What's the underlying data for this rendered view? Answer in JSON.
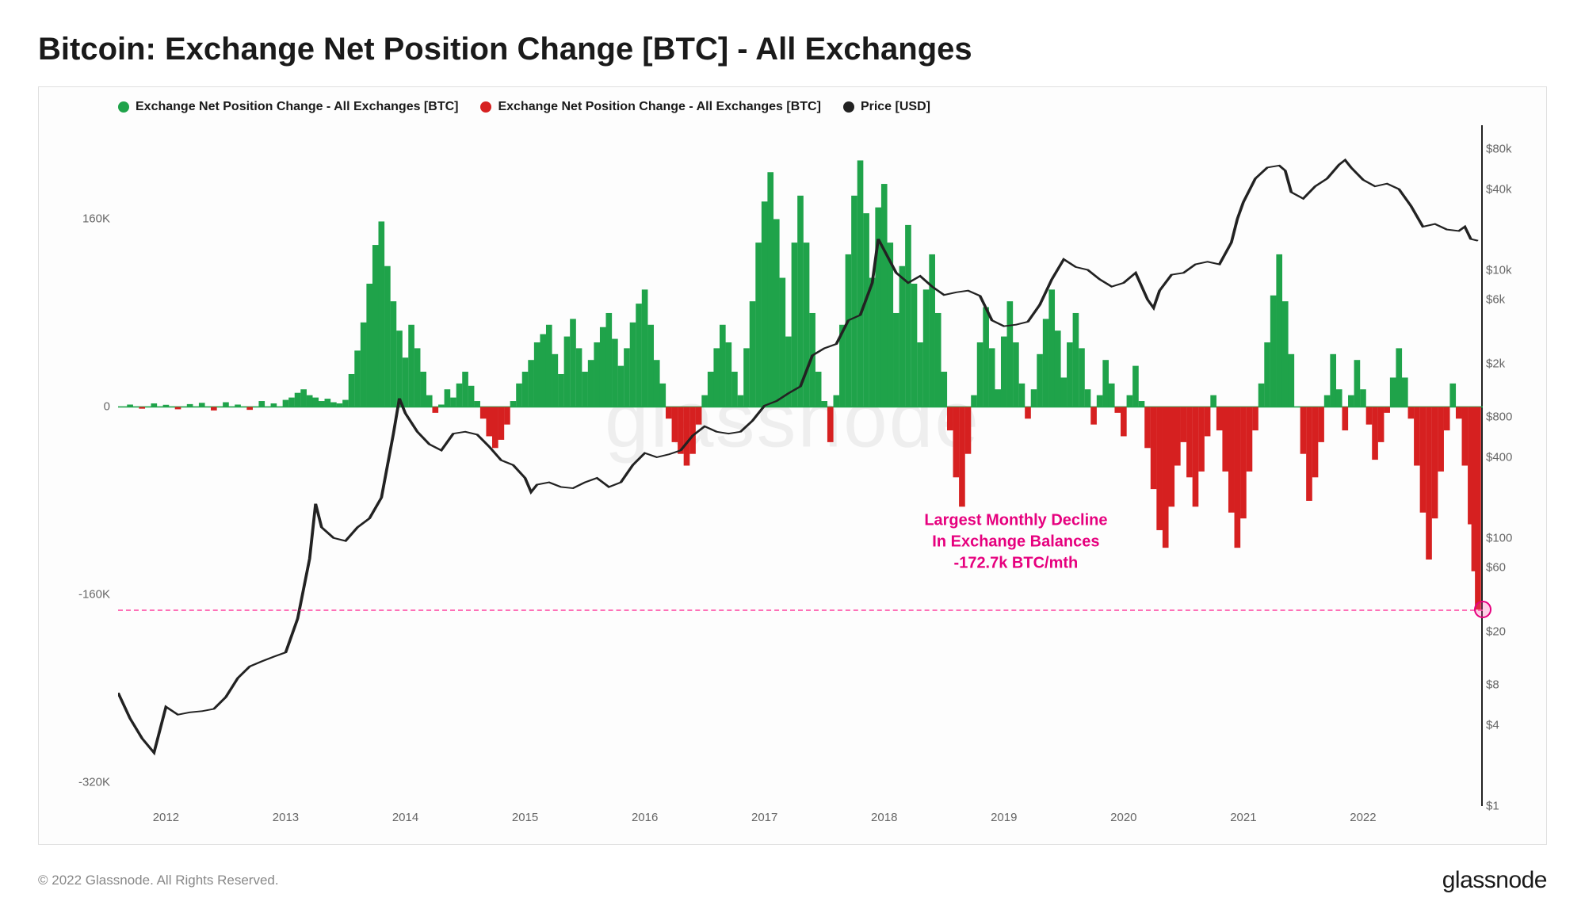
{
  "title": "Bitcoin: Exchange Net Position Change [BTC] - All Exchanges",
  "legend": {
    "pos": {
      "label": "Exchange Net Position Change - All Exchanges [BTC]",
      "color": "#1fa34a"
    },
    "neg": {
      "label": "Exchange Net Position Change - All Exchanges [BTC]",
      "color": "#d62020"
    },
    "price": {
      "label": "Price [USD]",
      "color": "#222222"
    }
  },
  "left_axis": {
    "min": -340000,
    "max": 240000,
    "ticks": [
      {
        "v": 160000,
        "label": "160K"
      },
      {
        "v": 0,
        "label": "0"
      },
      {
        "v": -160000,
        "label": "-160K"
      },
      {
        "v": -320000,
        "label": "-320K"
      }
    ]
  },
  "right_axis": {
    "type": "log",
    "min": 1,
    "max": 120000,
    "ticks": [
      {
        "v": 80000,
        "label": "$80k"
      },
      {
        "v": 40000,
        "label": "$40k"
      },
      {
        "v": 10000,
        "label": "$10k"
      },
      {
        "v": 6000,
        "label": "$6k"
      },
      {
        "v": 2000,
        "label": "$2k"
      },
      {
        "v": 800,
        "label": "$800"
      },
      {
        "v": 400,
        "label": "$400"
      },
      {
        "v": 100,
        "label": "$100"
      },
      {
        "v": 60,
        "label": "$60"
      },
      {
        "v": 20,
        "label": "$20"
      },
      {
        "v": 8,
        "label": "$8"
      },
      {
        "v": 4,
        "label": "$4"
      },
      {
        "v": 1,
        "label": "$1"
      }
    ]
  },
  "x_axis": {
    "min": 2011.6,
    "max": 2023.0,
    "ticks": [
      2012,
      2013,
      2014,
      2015,
      2016,
      2017,
      2018,
      2019,
      2020,
      2021,
      2022
    ]
  },
  "colors": {
    "pos_bar": "#1fa34a",
    "neg_bar": "#d62020",
    "price_line": "#222222",
    "grid": "#e8e8e8",
    "dash": "#ff4da6",
    "annotation": "#e6007e",
    "background": "#fdfdfd"
  },
  "annotation": {
    "line1": "Largest Monthly Decline",
    "line2": "In Exchange Balances",
    "line3": "-172.7k BTC/mth",
    "ref_value": -172700,
    "text_x_year": 2019.1,
    "text_y_value": -115000
  },
  "watermark": "glassnode",
  "footer": {
    "copyright": "© 2022 Glassnode. All Rights Reserved.",
    "brand": "glassnode"
  },
  "bar_series": [
    [
      2011.7,
      2000
    ],
    [
      2011.8,
      -1500
    ],
    [
      2011.9,
      3000
    ],
    [
      2012.0,
      1800
    ],
    [
      2012.1,
      -2000
    ],
    [
      2012.2,
      2400
    ],
    [
      2012.3,
      3500
    ],
    [
      2012.4,
      -3000
    ],
    [
      2012.5,
      4000
    ],
    [
      2012.6,
      2000
    ],
    [
      2012.7,
      -2500
    ],
    [
      2012.8,
      5000
    ],
    [
      2012.9,
      3000
    ],
    [
      2013.0,
      6000
    ],
    [
      2013.05,
      8000
    ],
    [
      2013.1,
      12000
    ],
    [
      2013.15,
      15000
    ],
    [
      2013.2,
      10000
    ],
    [
      2013.25,
      8000
    ],
    [
      2013.3,
      5000
    ],
    [
      2013.35,
      7000
    ],
    [
      2013.4,
      4000
    ],
    [
      2013.45,
      3000
    ],
    [
      2013.5,
      6000
    ],
    [
      2013.55,
      28000
    ],
    [
      2013.6,
      48000
    ],
    [
      2013.65,
      72000
    ],
    [
      2013.7,
      105000
    ],
    [
      2013.75,
      138000
    ],
    [
      2013.8,
      158000
    ],
    [
      2013.85,
      120000
    ],
    [
      2013.9,
      90000
    ],
    [
      2013.95,
      65000
    ],
    [
      2014.0,
      42000
    ],
    [
      2014.05,
      70000
    ],
    [
      2014.1,
      50000
    ],
    [
      2014.15,
      30000
    ],
    [
      2014.2,
      10000
    ],
    [
      2014.25,
      -5000
    ],
    [
      2014.3,
      2000
    ],
    [
      2014.35,
      15000
    ],
    [
      2014.4,
      8000
    ],
    [
      2014.45,
      20000
    ],
    [
      2014.5,
      30000
    ],
    [
      2014.55,
      18000
    ],
    [
      2014.6,
      5000
    ],
    [
      2014.65,
      -10000
    ],
    [
      2014.7,
      -25000
    ],
    [
      2014.75,
      -35000
    ],
    [
      2014.8,
      -28000
    ],
    [
      2014.85,
      -15000
    ],
    [
      2014.9,
      5000
    ],
    [
      2014.95,
      20000
    ],
    [
      2015.0,
      30000
    ],
    [
      2015.05,
      40000
    ],
    [
      2015.1,
      55000
    ],
    [
      2015.15,
      62000
    ],
    [
      2015.2,
      70000
    ],
    [
      2015.25,
      45000
    ],
    [
      2015.3,
      28000
    ],
    [
      2015.35,
      60000
    ],
    [
      2015.4,
      75000
    ],
    [
      2015.45,
      50000
    ],
    [
      2015.5,
      30000
    ],
    [
      2015.55,
      40000
    ],
    [
      2015.6,
      55000
    ],
    [
      2015.65,
      68000
    ],
    [
      2015.7,
      80000
    ],
    [
      2015.75,
      58000
    ],
    [
      2015.8,
      35000
    ],
    [
      2015.85,
      50000
    ],
    [
      2015.9,
      72000
    ],
    [
      2015.95,
      88000
    ],
    [
      2016.0,
      100000
    ],
    [
      2016.05,
      70000
    ],
    [
      2016.1,
      40000
    ],
    [
      2016.15,
      20000
    ],
    [
      2016.2,
      -10000
    ],
    [
      2016.25,
      -30000
    ],
    [
      2016.3,
      -40000
    ],
    [
      2016.35,
      -50000
    ],
    [
      2016.4,
      -40000
    ],
    [
      2016.45,
      -15000
    ],
    [
      2016.5,
      10000
    ],
    [
      2016.55,
      30000
    ],
    [
      2016.6,
      50000
    ],
    [
      2016.65,
      70000
    ],
    [
      2016.7,
      55000
    ],
    [
      2016.75,
      30000
    ],
    [
      2016.8,
      10000
    ],
    [
      2016.85,
      50000
    ],
    [
      2016.9,
      90000
    ],
    [
      2016.95,
      140000
    ],
    [
      2017.0,
      175000
    ],
    [
      2017.05,
      200000
    ],
    [
      2017.1,
      160000
    ],
    [
      2017.15,
      110000
    ],
    [
      2017.2,
      60000
    ],
    [
      2017.25,
      140000
    ],
    [
      2017.3,
      180000
    ],
    [
      2017.35,
      140000
    ],
    [
      2017.4,
      80000
    ],
    [
      2017.45,
      30000
    ],
    [
      2017.5,
      5000
    ],
    [
      2017.55,
      -30000
    ],
    [
      2017.6,
      10000
    ],
    [
      2017.65,
      70000
    ],
    [
      2017.7,
      130000
    ],
    [
      2017.75,
      180000
    ],
    [
      2017.8,
      210000
    ],
    [
      2017.85,
      165000
    ],
    [
      2017.9,
      110000
    ],
    [
      2017.95,
      170000
    ],
    [
      2018.0,
      190000
    ],
    [
      2018.05,
      140000
    ],
    [
      2018.1,
      80000
    ],
    [
      2018.15,
      120000
    ],
    [
      2018.2,
      155000
    ],
    [
      2018.25,
      105000
    ],
    [
      2018.3,
      55000
    ],
    [
      2018.35,
      100000
    ],
    [
      2018.4,
      130000
    ],
    [
      2018.45,
      80000
    ],
    [
      2018.5,
      30000
    ],
    [
      2018.55,
      -20000
    ],
    [
      2018.6,
      -60000
    ],
    [
      2018.65,
      -85000
    ],
    [
      2018.7,
      -40000
    ],
    [
      2018.75,
      10000
    ],
    [
      2018.8,
      55000
    ],
    [
      2018.85,
      85000
    ],
    [
      2018.9,
      50000
    ],
    [
      2018.95,
      15000
    ],
    [
      2019.0,
      60000
    ],
    [
      2019.05,
      90000
    ],
    [
      2019.1,
      55000
    ],
    [
      2019.15,
      20000
    ],
    [
      2019.2,
      -10000
    ],
    [
      2019.25,
      15000
    ],
    [
      2019.3,
      45000
    ],
    [
      2019.35,
      75000
    ],
    [
      2019.4,
      100000
    ],
    [
      2019.45,
      65000
    ],
    [
      2019.5,
      25000
    ],
    [
      2019.55,
      55000
    ],
    [
      2019.6,
      80000
    ],
    [
      2019.65,
      50000
    ],
    [
      2019.7,
      15000
    ],
    [
      2019.75,
      -15000
    ],
    [
      2019.8,
      10000
    ],
    [
      2019.85,
      40000
    ],
    [
      2019.9,
      20000
    ],
    [
      2019.95,
      -5000
    ],
    [
      2020.0,
      -25000
    ],
    [
      2020.05,
      10000
    ],
    [
      2020.1,
      35000
    ],
    [
      2020.15,
      5000
    ],
    [
      2020.2,
      -35000
    ],
    [
      2020.25,
      -70000
    ],
    [
      2020.3,
      -105000
    ],
    [
      2020.35,
      -120000
    ],
    [
      2020.4,
      -85000
    ],
    [
      2020.45,
      -50000
    ],
    [
      2020.5,
      -30000
    ],
    [
      2020.55,
      -60000
    ],
    [
      2020.6,
      -85000
    ],
    [
      2020.65,
      -55000
    ],
    [
      2020.7,
      -25000
    ],
    [
      2020.75,
      10000
    ],
    [
      2020.8,
      -20000
    ],
    [
      2020.85,
      -55000
    ],
    [
      2020.9,
      -90000
    ],
    [
      2020.95,
      -120000
    ],
    [
      2021.0,
      -95000
    ],
    [
      2021.05,
      -55000
    ],
    [
      2021.1,
      -20000
    ],
    [
      2021.15,
      20000
    ],
    [
      2021.2,
      55000
    ],
    [
      2021.25,
      95000
    ],
    [
      2021.3,
      130000
    ],
    [
      2021.35,
      90000
    ],
    [
      2021.4,
      45000
    ],
    [
      2021.45,
      0
    ],
    [
      2021.5,
      -40000
    ],
    [
      2021.55,
      -80000
    ],
    [
      2021.6,
      -60000
    ],
    [
      2021.65,
      -30000
    ],
    [
      2021.7,
      10000
    ],
    [
      2021.75,
      45000
    ],
    [
      2021.8,
      15000
    ],
    [
      2021.85,
      -20000
    ],
    [
      2021.9,
      10000
    ],
    [
      2021.95,
      40000
    ],
    [
      2022.0,
      15000
    ],
    [
      2022.05,
      -15000
    ],
    [
      2022.1,
      -45000
    ],
    [
      2022.15,
      -30000
    ],
    [
      2022.2,
      -5000
    ],
    [
      2022.25,
      25000
    ],
    [
      2022.3,
      50000
    ],
    [
      2022.35,
      25000
    ],
    [
      2022.4,
      -10000
    ],
    [
      2022.45,
      -50000
    ],
    [
      2022.5,
      -90000
    ],
    [
      2022.55,
      -130000
    ],
    [
      2022.6,
      -95000
    ],
    [
      2022.65,
      -55000
    ],
    [
      2022.7,
      -20000
    ],
    [
      2022.75,
      20000
    ],
    [
      2022.8,
      -10000
    ],
    [
      2022.85,
      -50000
    ],
    [
      2022.9,
      -100000
    ],
    [
      2022.93,
      -140000
    ],
    [
      2022.96,
      -172700
    ]
  ],
  "price_series": [
    [
      2011.6,
      7
    ],
    [
      2011.7,
      4.5
    ],
    [
      2011.8,
      3.2
    ],
    [
      2011.9,
      2.5
    ],
    [
      2012.0,
      5.5
    ],
    [
      2012.1,
      4.8
    ],
    [
      2012.2,
      5.0
    ],
    [
      2012.3,
      5.1
    ],
    [
      2012.4,
      5.3
    ],
    [
      2012.5,
      6.5
    ],
    [
      2012.6,
      9
    ],
    [
      2012.7,
      11
    ],
    [
      2012.8,
      12
    ],
    [
      2012.9,
      13
    ],
    [
      2013.0,
      14
    ],
    [
      2013.1,
      25
    ],
    [
      2013.2,
      70
    ],
    [
      2013.25,
      180
    ],
    [
      2013.3,
      120
    ],
    [
      2013.4,
      100
    ],
    [
      2013.5,
      95
    ],
    [
      2013.6,
      120
    ],
    [
      2013.7,
      140
    ],
    [
      2013.8,
      200
    ],
    [
      2013.9,
      600
    ],
    [
      2013.95,
      1100
    ],
    [
      2014.0,
      850
    ],
    [
      2014.1,
      620
    ],
    [
      2014.2,
      500
    ],
    [
      2014.3,
      450
    ],
    [
      2014.4,
      600
    ],
    [
      2014.5,
      620
    ],
    [
      2014.6,
      590
    ],
    [
      2014.7,
      480
    ],
    [
      2014.8,
      380
    ],
    [
      2014.9,
      350
    ],
    [
      2015.0,
      280
    ],
    [
      2015.05,
      220
    ],
    [
      2015.1,
      250
    ],
    [
      2015.2,
      260
    ],
    [
      2015.3,
      240
    ],
    [
      2015.4,
      235
    ],
    [
      2015.5,
      260
    ],
    [
      2015.6,
      280
    ],
    [
      2015.7,
      240
    ],
    [
      2015.8,
      260
    ],
    [
      2015.9,
      350
    ],
    [
      2016.0,
      430
    ],
    [
      2016.1,
      400
    ],
    [
      2016.2,
      420
    ],
    [
      2016.3,
      450
    ],
    [
      2016.4,
      580
    ],
    [
      2016.5,
      680
    ],
    [
      2016.6,
      620
    ],
    [
      2016.7,
      600
    ],
    [
      2016.8,
      620
    ],
    [
      2016.9,
      750
    ],
    [
      2017.0,
      970
    ],
    [
      2017.1,
      1050
    ],
    [
      2017.2,
      1200
    ],
    [
      2017.3,
      1350
    ],
    [
      2017.4,
      2300
    ],
    [
      2017.5,
      2600
    ],
    [
      2017.6,
      2800
    ],
    [
      2017.7,
      4200
    ],
    [
      2017.8,
      4600
    ],
    [
      2017.9,
      8000
    ],
    [
      2017.95,
      17000
    ],
    [
      2018.0,
      14000
    ],
    [
      2018.1,
      9500
    ],
    [
      2018.2,
      8000
    ],
    [
      2018.3,
      9000
    ],
    [
      2018.4,
      7500
    ],
    [
      2018.5,
      6500
    ],
    [
      2018.6,
      6800
    ],
    [
      2018.7,
      7000
    ],
    [
      2018.8,
      6400
    ],
    [
      2018.9,
      4200
    ],
    [
      2019.0,
      3800
    ],
    [
      2019.1,
      3900
    ],
    [
      2019.2,
      4100
    ],
    [
      2019.3,
      5500
    ],
    [
      2019.4,
      8500
    ],
    [
      2019.5,
      12000
    ],
    [
      2019.6,
      10500
    ],
    [
      2019.7,
      10000
    ],
    [
      2019.8,
      8500
    ],
    [
      2019.9,
      7500
    ],
    [
      2020.0,
      8000
    ],
    [
      2020.1,
      9500
    ],
    [
      2020.2,
      6000
    ],
    [
      2020.25,
      5200
    ],
    [
      2020.3,
      7000
    ],
    [
      2020.4,
      9200
    ],
    [
      2020.5,
      9500
    ],
    [
      2020.6,
      11000
    ],
    [
      2020.7,
      11500
    ],
    [
      2020.8,
      11000
    ],
    [
      2020.9,
      16000
    ],
    [
      2020.95,
      24000
    ],
    [
      2021.0,
      32000
    ],
    [
      2021.1,
      48000
    ],
    [
      2021.2,
      58000
    ],
    [
      2021.3,
      60000
    ],
    [
      2021.35,
      55000
    ],
    [
      2021.4,
      38000
    ],
    [
      2021.5,
      34000
    ],
    [
      2021.6,
      42000
    ],
    [
      2021.7,
      48000
    ],
    [
      2021.8,
      61000
    ],
    [
      2021.85,
      66000
    ],
    [
      2021.9,
      58000
    ],
    [
      2022.0,
      47000
    ],
    [
      2022.1,
      42000
    ],
    [
      2022.2,
      44000
    ],
    [
      2022.3,
      40000
    ],
    [
      2022.4,
      30000
    ],
    [
      2022.5,
      21000
    ],
    [
      2022.6,
      22000
    ],
    [
      2022.7,
      20000
    ],
    [
      2022.8,
      19500
    ],
    [
      2022.85,
      21000
    ],
    [
      2022.9,
      17000
    ],
    [
      2022.96,
      16500
    ]
  ]
}
